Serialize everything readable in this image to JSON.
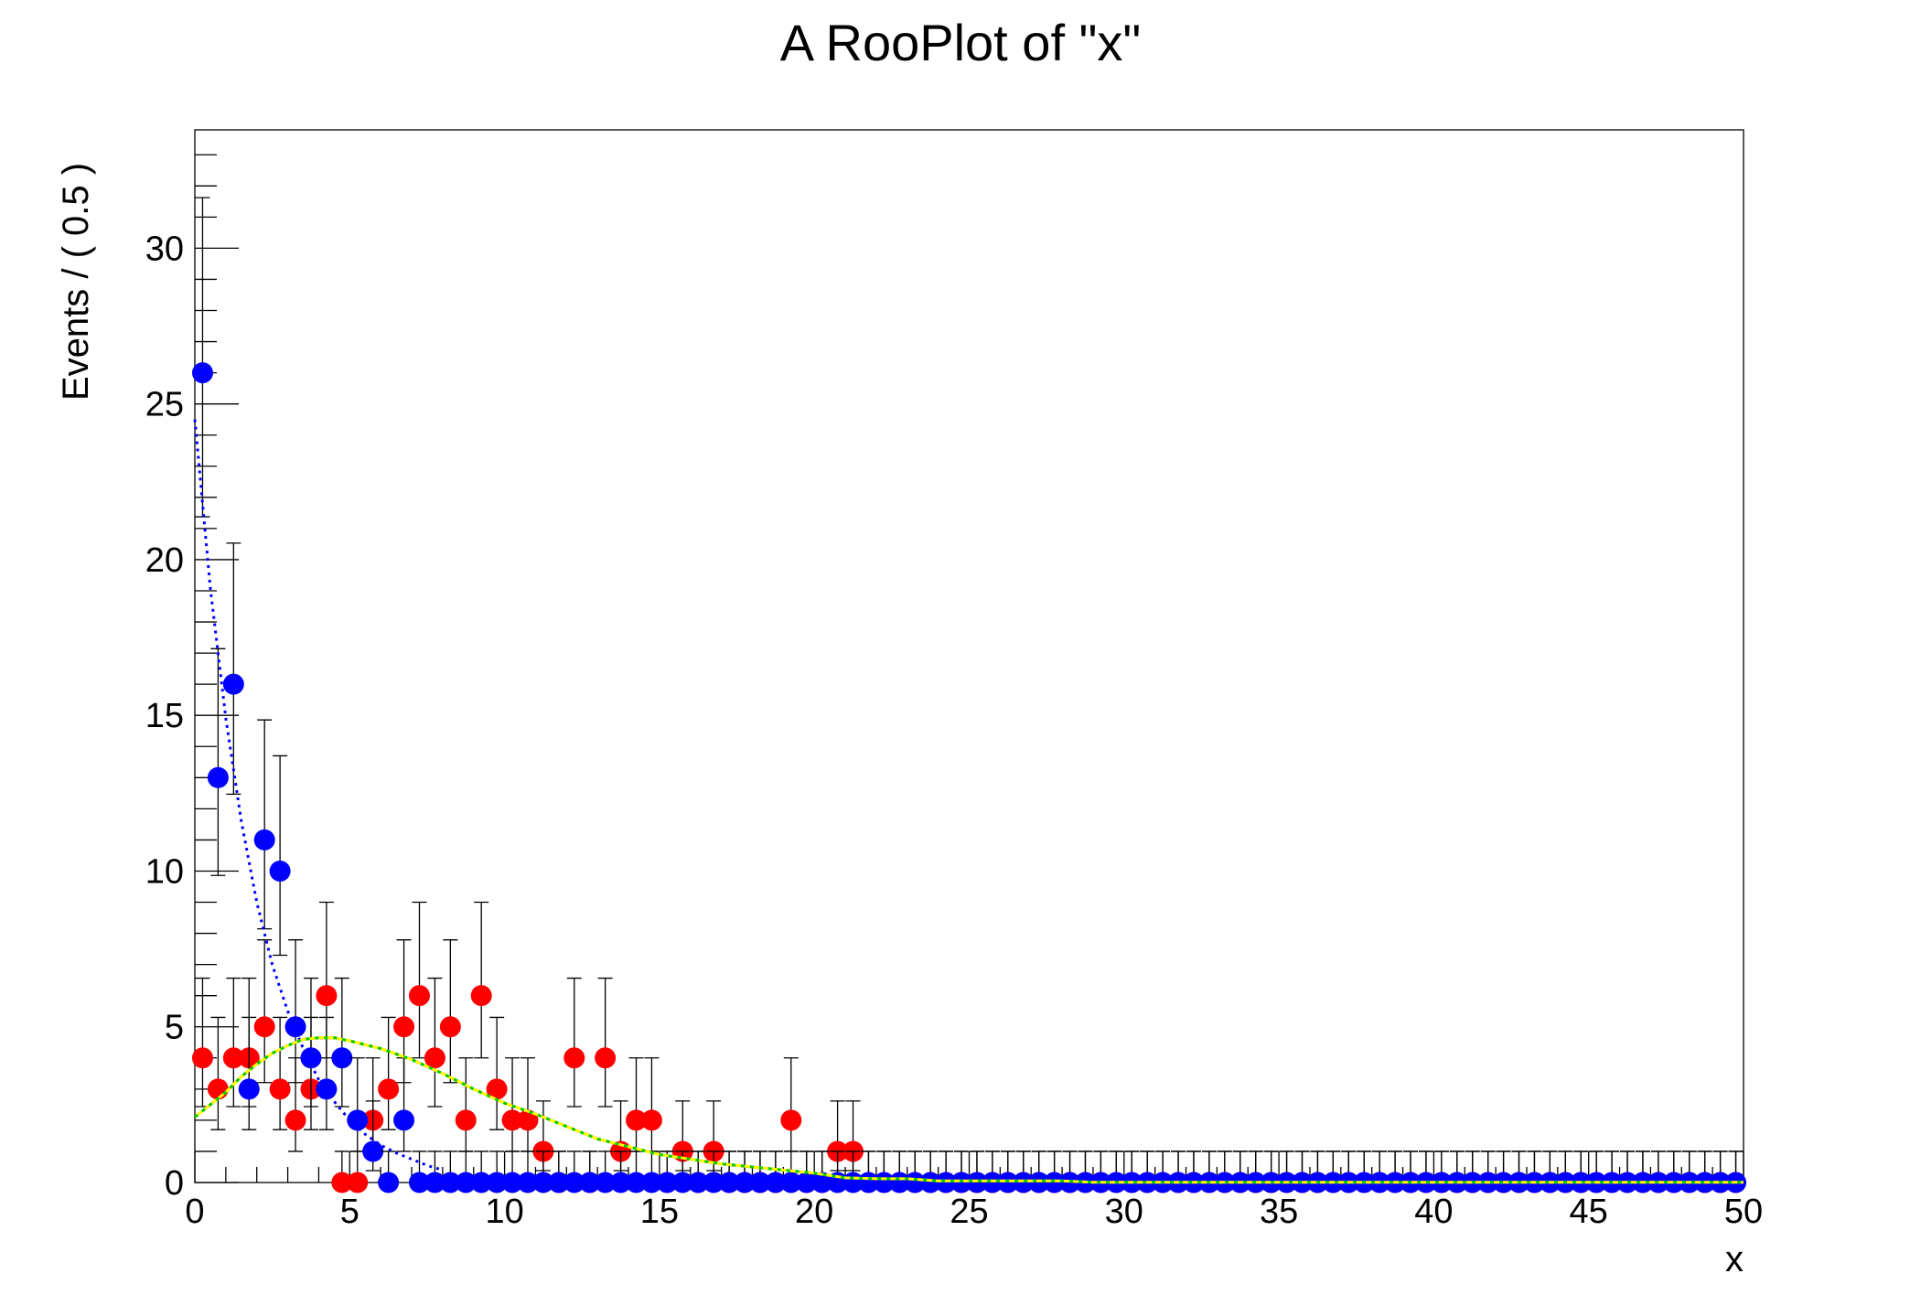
{
  "chart_data": {
    "type": "scatter",
    "title": "A RooPlot of \"x\"",
    "xlabel": "x",
    "ylabel": "Events / ( 0.5 )",
    "xlim": [
      0,
      50
    ],
    "ylim": [
      0,
      33.8
    ],
    "x_ticks": [
      0,
      5,
      10,
      15,
      20,
      25,
      30,
      35,
      40,
      45,
      50
    ],
    "y_ticks": [
      0,
      5,
      10,
      15,
      20,
      25,
      30
    ],
    "bin_width": 0.5,
    "grid": false,
    "series": [
      {
        "kind": "points",
        "color": "#ff0000",
        "bin_centers_start": 0.25,
        "values": [
          4,
          3,
          4,
          4,
          5,
          3,
          2,
          3,
          6,
          0,
          0,
          2,
          3,
          5,
          6,
          4,
          5,
          2,
          6,
          3,
          2,
          2,
          1,
          0,
          4,
          0,
          4,
          1,
          2,
          2,
          0,
          1,
          0,
          1,
          0,
          0,
          0,
          0,
          2,
          0,
          0,
          1,
          1,
          0,
          0,
          0,
          0,
          0,
          0,
          0,
          0,
          0,
          0,
          0,
          0,
          0,
          0,
          0,
          0,
          0,
          0,
          0,
          0,
          0,
          0,
          0,
          0,
          0,
          0,
          0,
          0,
          0,
          0,
          0,
          0,
          0,
          0,
          0,
          0,
          0,
          0,
          0,
          0,
          0,
          0,
          0,
          0,
          0,
          0,
          0,
          0,
          0,
          0,
          0,
          0,
          0,
          0,
          0,
          0,
          0
        ]
      },
      {
        "kind": "points",
        "color": "#0000ff",
        "bin_centers_start": 0.25,
        "values": [
          26,
          13,
          16,
          3,
          11,
          10,
          5,
          4,
          3,
          4,
          2,
          1,
          0,
          2,
          0,
          0,
          0,
          0,
          0,
          0,
          0,
          0,
          0,
          0,
          0,
          0,
          0,
          0,
          0,
          0,
          0,
          0,
          0,
          0,
          0,
          0,
          0,
          0,
          0,
          0,
          0,
          0,
          0,
          0,
          0,
          0,
          0,
          0,
          0,
          0,
          0,
          0,
          0,
          0,
          0,
          0,
          0,
          0,
          0,
          0,
          0,
          0,
          0,
          0,
          0,
          0,
          0,
          0,
          0,
          0,
          0,
          0,
          0,
          0,
          0,
          0,
          0,
          0,
          0,
          0,
          0,
          0,
          0,
          0,
          0,
          0,
          0,
          0,
          0,
          0,
          0,
          0,
          0,
          0,
          0,
          0,
          0,
          0,
          0,
          0
        ]
      },
      {
        "kind": "curve",
        "style": "dotted",
        "color": "#0000ff",
        "x": [
          0,
          0.5,
          1,
          1.5,
          2,
          2.5,
          3,
          3.5,
          4,
          4.5,
          5,
          5.5,
          6,
          6.5,
          7,
          7.5,
          8
        ],
        "y": [
          24.5,
          19.1,
          14.9,
          11.6,
          9.0,
          7.0,
          5.5,
          4.3,
          3.3,
          2.6,
          2.0,
          1.55,
          1.2,
          0.95,
          0.75,
          0.55,
          0.4
        ]
      },
      {
        "kind": "curve",
        "style": "solid",
        "color": "#ff0000",
        "x": [
          0,
          0.5,
          1,
          1.5,
          2,
          2.5,
          3,
          3.5,
          4,
          4.5,
          5,
          6,
          7,
          8,
          9,
          10,
          11,
          12,
          13,
          14,
          15,
          16,
          17,
          18,
          19,
          20,
          21,
          22,
          23,
          24,
          25,
          26,
          27,
          28,
          29,
          30,
          35,
          40,
          45,
          50
        ],
        "y": [
          2.1,
          2.5,
          2.9,
          3.4,
          3.8,
          4.15,
          4.4,
          4.6,
          4.65,
          4.65,
          4.55,
          4.3,
          3.95,
          3.5,
          3.0,
          2.55,
          2.2,
          1.8,
          1.4,
          1.15,
          0.9,
          0.75,
          0.6,
          0.5,
          0.4,
          0.3,
          0.15,
          0.12,
          0.12,
          0.05,
          0.05,
          0.05,
          0.05,
          0.05,
          0.01,
          0.01,
          0.01,
          0.01,
          0.01,
          0.01
        ]
      },
      {
        "kind": "curve",
        "style": "dashed-two-tone",
        "color": "#ffff00",
        "color2": "#00cc00",
        "x": [
          0,
          0.5,
          1,
          1.5,
          2,
          2.5,
          3,
          3.5,
          4,
          4.5,
          5,
          6,
          7,
          8,
          9,
          10,
          11,
          12,
          13,
          14,
          15,
          16,
          17,
          18,
          19,
          20,
          21,
          22,
          23,
          24,
          25,
          26,
          27,
          28,
          29,
          30,
          35,
          40,
          45,
          50
        ],
        "y": [
          2.1,
          2.5,
          2.9,
          3.4,
          3.8,
          4.15,
          4.4,
          4.6,
          4.65,
          4.65,
          4.55,
          4.3,
          3.95,
          3.5,
          3.0,
          2.55,
          2.2,
          1.8,
          1.4,
          1.15,
          0.9,
          0.75,
          0.6,
          0.5,
          0.4,
          0.3,
          0.15,
          0.12,
          0.12,
          0.05,
          0.05,
          0.05,
          0.05,
          0.05,
          0.01,
          0.01,
          0.01,
          0.01,
          0.01,
          0.01
        ]
      }
    ]
  }
}
